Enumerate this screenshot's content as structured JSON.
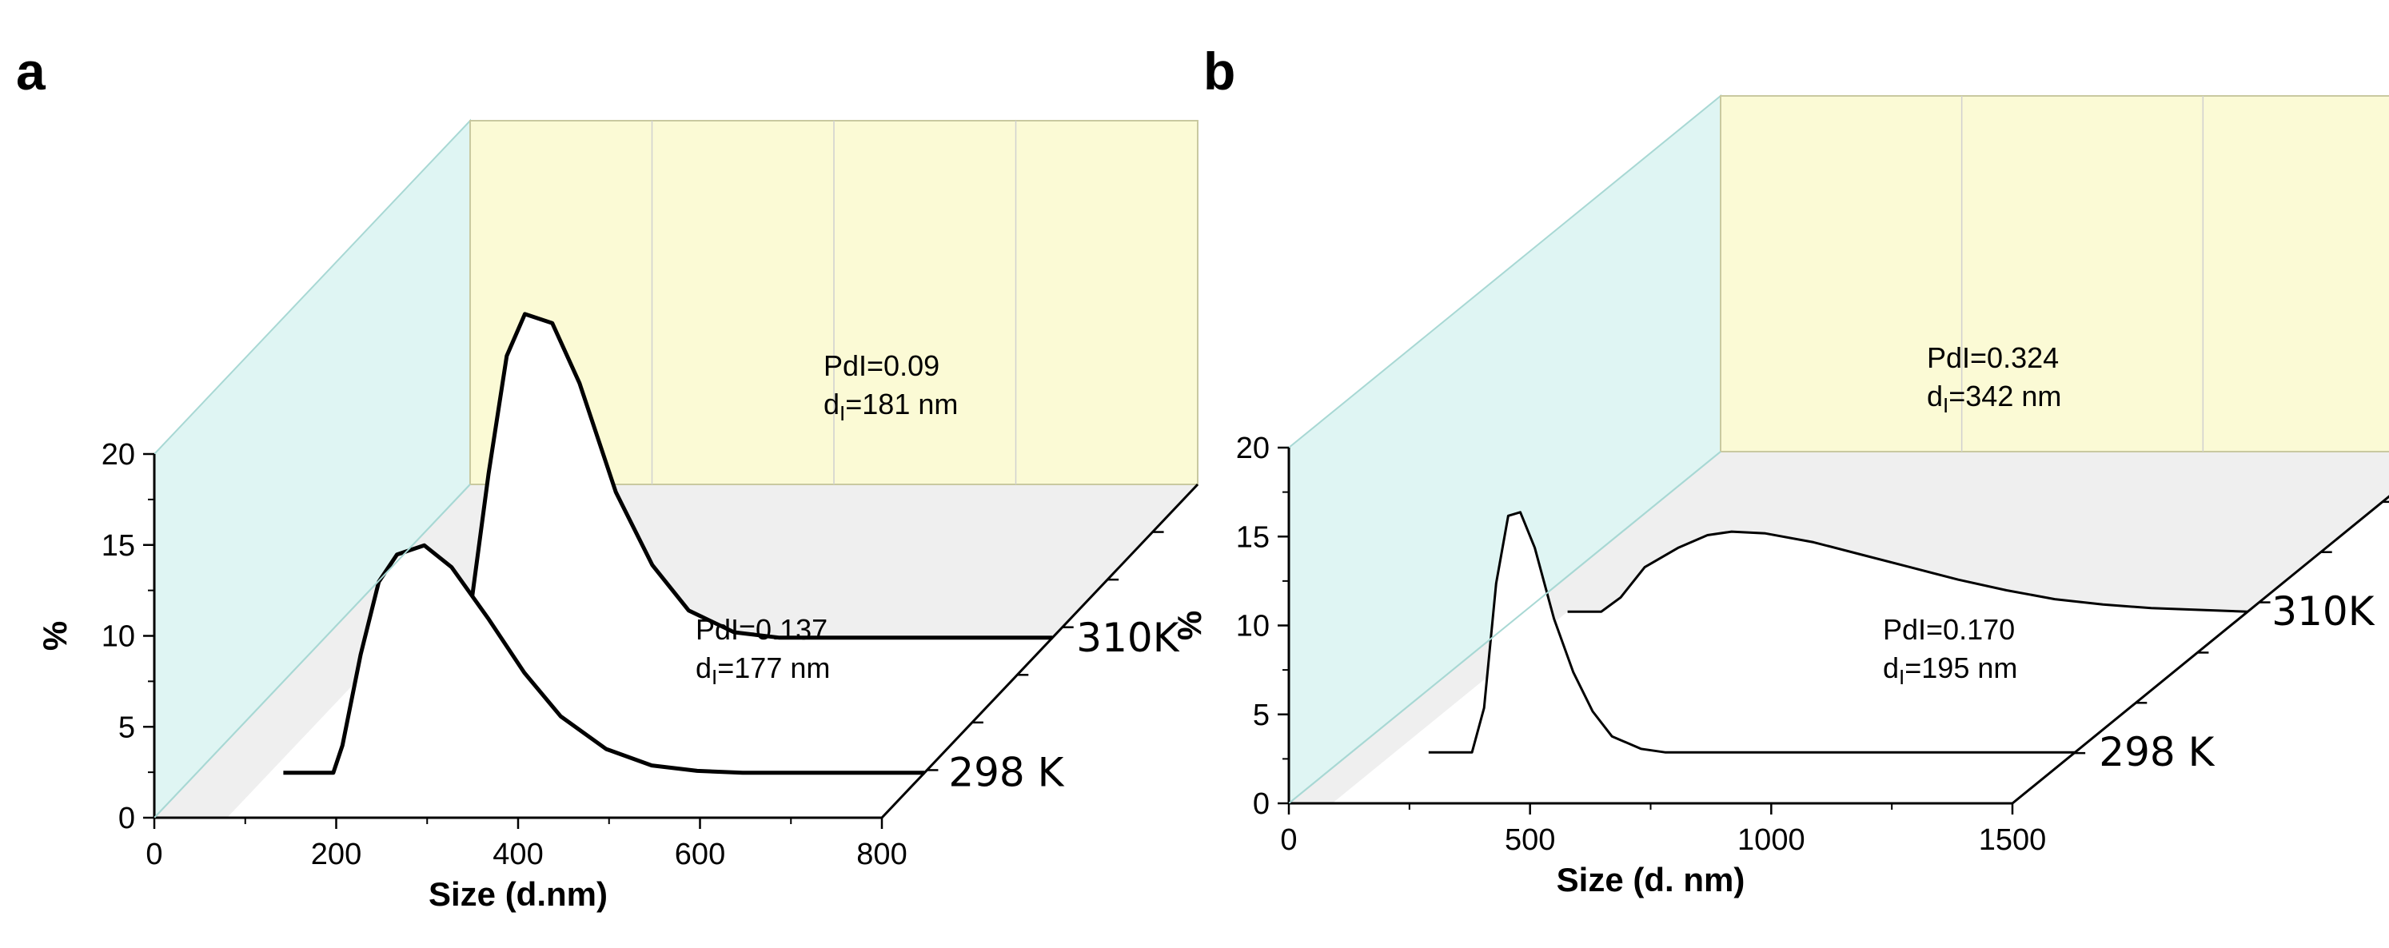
{
  "colors": {
    "back_wall": "#fbfad5",
    "side_wall": "#dff5f3",
    "floor": "#efefef",
    "floor_front": "#ffffff",
    "axis": "#000000",
    "wall_edge": "#a8d8d4",
    "grid": "#d0d0d0"
  },
  "chart_data": [
    {
      "type": "line",
      "panel": "a",
      "xlabel": "Size (d.nm)",
      "ylabel": "%",
      "xlim": [
        0,
        800
      ],
      "ylim": [
        0,
        20
      ],
      "xticks": [
        "0",
        "200",
        "400",
        "600",
        "800"
      ],
      "yticks": [
        "0",
        "5",
        "10",
        "15",
        "20"
      ],
      "series": [
        {
          "name": "298 K",
          "annotation_pdi": "PdI=0.137",
          "annotation_d_prefix": "d",
          "annotation_d_sub": "I",
          "annotation_d_value": "=177 nm",
          "x": [
            95,
            150,
            160,
            180,
            200,
            220,
            250,
            280,
            320,
            360,
            400,
            450,
            500,
            550,
            600
          ],
          "y": [
            0,
            0,
            1.5,
            6.5,
            10.5,
            12.0,
            12.5,
            11.3,
            8.5,
            5.5,
            3.1,
            1.3,
            0.4,
            0.1,
            0
          ]
        },
        {
          "name": "310K",
          "annotation_pdi": "PdI=0.09",
          "annotation_d_prefix": "d",
          "annotation_d_sub": "I",
          "annotation_d_value": "=181 nm",
          "x": [
            80,
            150,
            160,
            180,
            200,
            220,
            250,
            280,
            320,
            360,
            400,
            450,
            500,
            550,
            600
          ],
          "y": [
            0,
            0,
            1.5,
            9.0,
            15.5,
            17.8,
            17.3,
            14.0,
            8.0,
            4.0,
            1.5,
            0.3,
            0,
            0,
            0
          ]
        }
      ]
    },
    {
      "type": "line",
      "panel": "b",
      "xlabel": "Size (d. nm)",
      "ylabel": "%",
      "xlim": [
        0,
        1500
      ],
      "ylim": [
        0,
        20
      ],
      "xticks": [
        "0",
        "500",
        "1000",
        "1500"
      ],
      "yticks": [
        "0",
        "5",
        "10",
        "15",
        "20"
      ],
      "series": [
        {
          "name": "298 K",
          "annotation_pdi": "PdI=0.170",
          "annotation_d_prefix": "d",
          "annotation_d_sub": "I",
          "annotation_d_value": "=195 nm",
          "x": [
            160,
            250,
            275,
            300,
            325,
            350,
            380,
            420,
            460,
            500,
            540,
            600,
            650,
            700
          ],
          "y": [
            0,
            0,
            2.5,
            9.5,
            13.3,
            13.5,
            11.5,
            7.5,
            4.5,
            2.3,
            0.9,
            0.2,
            0,
            0
          ]
        },
        {
          "name": "310K",
          "annotation_pdi": "PdI=0.324",
          "annotation_d_prefix": "d",
          "annotation_d_sub": "I",
          "annotation_d_value": "=342 nm",
          "x": [
            90,
            160,
            200,
            250,
            320,
            380,
            430,
            500,
            600,
            700,
            800,
            900,
            1000,
            1100,
            1200,
            1300,
            1400,
            1500
          ],
          "y": [
            0,
            0,
            0.8,
            2.5,
            3.6,
            4.3,
            4.5,
            4.4,
            3.9,
            3.2,
            2.5,
            1.8,
            1.2,
            0.7,
            0.4,
            0.2,
            0.1,
            0
          ]
        }
      ]
    }
  ]
}
